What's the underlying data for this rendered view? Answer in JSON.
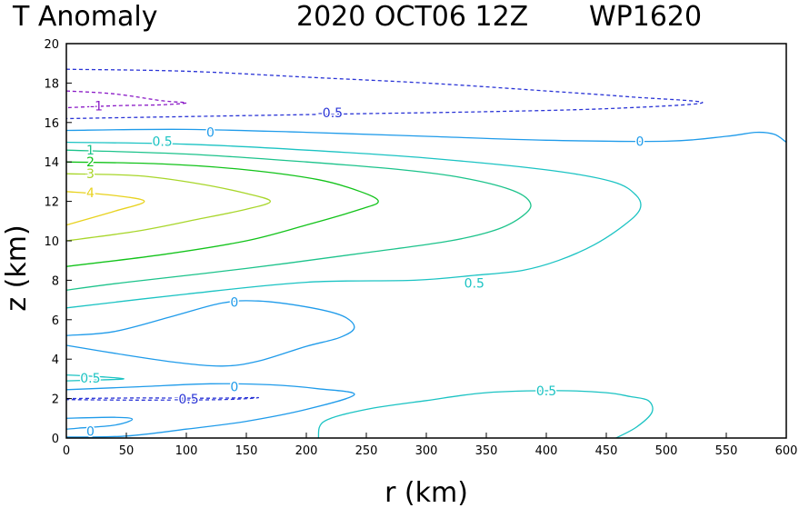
{
  "chart_data": {
    "type": "contour",
    "title": {
      "variable": "T Anomaly",
      "datetime": "2020 OCT06 12Z",
      "storm": "WP1620"
    },
    "xlabel": "r (km)",
    "ylabel": "z (km)",
    "xlim": [
      0,
      600
    ],
    "ylim": [
      0,
      20
    ],
    "x_ticks": [
      0,
      50,
      100,
      150,
      200,
      250,
      300,
      350,
      400,
      450,
      500,
      550,
      600
    ],
    "y_ticks": [
      0,
      2,
      4,
      6,
      8,
      10,
      12,
      14,
      16,
      18,
      20
    ],
    "level_colors": {
      "-1": "#8a19c6",
      "-0.5": "#2a34d6",
      "0": "#1f9bea",
      "0.5": "#1bc3c3",
      "1": "#1cc38b",
      "2": "#12c31a",
      "3": "#a8d62a",
      "4": "#e8d21e"
    },
    "contours": [
      {
        "level": -0.5,
        "dashed": true,
        "points": [
          [
            0,
            18.7
          ],
          [
            100,
            18.6
          ],
          [
            200,
            18.3
          ],
          [
            300,
            18.0
          ],
          [
            400,
            17.6
          ],
          [
            470,
            17.3
          ],
          [
            530,
            17.0
          ],
          [
            450,
            16.7
          ],
          [
            350,
            16.55
          ],
          [
            250,
            16.45
          ],
          [
            150,
            16.35
          ],
          [
            0,
            16.2
          ]
        ]
      },
      {
        "level": -1,
        "dashed": true,
        "points": [
          [
            0,
            17.6
          ],
          [
            40,
            17.45
          ],
          [
            80,
            17.1
          ],
          [
            100,
            17.0
          ],
          [
            80,
            16.9
          ],
          [
            40,
            16.85
          ],
          [
            0,
            16.75
          ]
        ]
      },
      {
        "level": 0,
        "dashed": false,
        "points": [
          [
            0,
            15.6
          ],
          [
            100,
            15.65
          ],
          [
            200,
            15.5
          ],
          [
            300,
            15.3
          ],
          [
            400,
            15.1
          ],
          [
            500,
            15.05
          ],
          [
            550,
            15.3
          ],
          [
            575,
            15.5
          ],
          [
            590,
            15.4
          ],
          [
            600,
            15.0
          ]
        ]
      },
      {
        "level": 0.5,
        "dashed": false,
        "points": [
          [
            0,
            15.0
          ],
          [
            100,
            14.9
          ],
          [
            200,
            14.6
          ],
          [
            300,
            14.2
          ],
          [
            400,
            13.6
          ],
          [
            455,
            13.0
          ],
          [
            475,
            12.3
          ],
          [
            478,
            11.6
          ],
          [
            465,
            10.8
          ],
          [
            440,
            9.8
          ],
          [
            410,
            9.0
          ],
          [
            380,
            8.5
          ],
          [
            340,
            8.25
          ],
          [
            290,
            8.0
          ],
          [
            200,
            7.9
          ],
          [
            100,
            7.3
          ],
          [
            0,
            6.6
          ]
        ]
      },
      {
        "level": 1,
        "dashed": false,
        "points": [
          [
            0,
            14.6
          ],
          [
            100,
            14.4
          ],
          [
            200,
            14.0
          ],
          [
            280,
            13.6
          ],
          [
            330,
            13.2
          ],
          [
            370,
            12.6
          ],
          [
            386,
            12.0
          ],
          [
            383,
            11.4
          ],
          [
            360,
            10.6
          ],
          [
            320,
            10.0
          ],
          [
            250,
            9.4
          ],
          [
            150,
            8.6
          ],
          [
            50,
            7.9
          ],
          [
            0,
            7.5
          ]
        ]
      },
      {
        "level": 2,
        "dashed": false,
        "points": [
          [
            0,
            14.0
          ],
          [
            80,
            13.9
          ],
          [
            150,
            13.6
          ],
          [
            210,
            13.1
          ],
          [
            245,
            12.5
          ],
          [
            260,
            12.0
          ],
          [
            245,
            11.6
          ],
          [
            200,
            10.8
          ],
          [
            150,
            10.0
          ],
          [
            80,
            9.3
          ],
          [
            0,
            8.7
          ]
        ]
      },
      {
        "level": 3,
        "dashed": false,
        "points": [
          [
            0,
            13.4
          ],
          [
            60,
            13.3
          ],
          [
            110,
            12.9
          ],
          [
            150,
            12.4
          ],
          [
            170,
            12.0
          ],
          [
            150,
            11.6
          ],
          [
            110,
            11.1
          ],
          [
            60,
            10.5
          ],
          [
            0,
            10.0
          ]
        ]
      },
      {
        "level": 4,
        "dashed": false,
        "points": [
          [
            0,
            12.5
          ],
          [
            40,
            12.3
          ],
          [
            65,
            12.0
          ],
          [
            40,
            11.5
          ],
          [
            0,
            10.8
          ]
        ]
      },
      {
        "level": 0,
        "dashed": false,
        "points": [
          [
            0,
            5.2
          ],
          [
            40,
            5.4
          ],
          [
            90,
            6.2
          ],
          [
            130,
            6.85
          ],
          [
            160,
            6.95
          ],
          [
            200,
            6.65
          ],
          [
            230,
            6.2
          ],
          [
            240,
            5.6
          ],
          [
            228,
            5.1
          ],
          [
            200,
            4.65
          ],
          [
            160,
            3.9
          ],
          [
            130,
            3.65
          ],
          [
            90,
            3.85
          ],
          [
            40,
            4.3
          ],
          [
            0,
            4.7
          ]
        ]
      },
      {
        "level": 0.5,
        "dashed": false,
        "points": [
          [
            0,
            3.2
          ],
          [
            30,
            3.1
          ],
          [
            48,
            3.0
          ],
          [
            30,
            2.95
          ],
          [
            0,
            2.9
          ]
        ]
      },
      {
        "level": 0,
        "dashed": false,
        "points": [
          [
            0,
            2.45
          ],
          [
            60,
            2.6
          ],
          [
            120,
            2.75
          ],
          [
            170,
            2.7
          ],
          [
            210,
            2.5
          ],
          [
            240,
            2.2
          ],
          [
            200,
            1.45
          ],
          [
            150,
            0.85
          ],
          [
            100,
            0.45
          ],
          [
            50,
            0.1
          ],
          [
            0,
            0.05
          ]
        ]
      },
      {
        "level": -0.5,
        "dashed": true,
        "points": [
          [
            0,
            2.0
          ],
          [
            60,
            2.03
          ],
          [
            120,
            2.02
          ],
          [
            160,
            2.05
          ],
          [
            130,
            1.95
          ],
          [
            60,
            1.92
          ],
          [
            0,
            1.95
          ]
        ]
      },
      {
        "level": 0,
        "dashed": false,
        "points": [
          [
            0,
            1.0
          ],
          [
            40,
            1.05
          ],
          [
            55,
            0.95
          ],
          [
            40,
            0.65
          ],
          [
            10,
            0.5
          ],
          [
            0,
            0.45
          ]
        ]
      },
      {
        "level": 0.5,
        "dashed": false,
        "points": [
          [
            210,
            0
          ],
          [
            215,
            0.85
          ],
          [
            250,
            1.45
          ],
          [
            300,
            1.9
          ],
          [
            350,
            2.3
          ],
          [
            410,
            2.4
          ],
          [
            450,
            2.3
          ],
          [
            470,
            2.1
          ],
          [
            485,
            1.9
          ],
          [
            488,
            1.3
          ],
          [
            475,
            0.55
          ],
          [
            458,
            0
          ]
        ]
      }
    ],
    "contour_labels": [
      {
        "text": "0",
        "level": 0,
        "x": 120,
        "y": 15.5
      },
      {
        "text": "0.5",
        "level": 0.5,
        "x": 80,
        "y": 15.05
      },
      {
        "text": "0",
        "level": 0,
        "x": 478,
        "y": 15.05
      },
      {
        "text": "-0.5",
        "level": -0.5,
        "x": 220,
        "y": 16.5
      },
      {
        "text": "-1",
        "level": -1,
        "x": 25,
        "y": 16.85
      },
      {
        "text": "1",
        "level": 1,
        "x": 20,
        "y": 14.6
      },
      {
        "text": "2",
        "level": 2,
        "x": 20,
        "y": 14.0
      },
      {
        "text": "3",
        "level": 3,
        "x": 20,
        "y": 13.4
      },
      {
        "text": "4",
        "level": 4,
        "x": 20,
        "y": 12.45
      },
      {
        "text": "0.5",
        "level": 0.5,
        "x": 340,
        "y": 7.85
      },
      {
        "text": "0",
        "level": 0,
        "x": 140,
        "y": 6.9
      },
      {
        "text": "0.5",
        "level": 0.5,
        "x": 20,
        "y": 3.05
      },
      {
        "text": "0",
        "level": 0,
        "x": 140,
        "y": 2.6
      },
      {
        "text": "-0.5",
        "level": -0.5,
        "x": 100,
        "y": 1.98
      },
      {
        "text": "0.5",
        "level": 0.5,
        "x": 400,
        "y": 2.4
      },
      {
        "text": "0",
        "level": 0,
        "x": 20,
        "y": 0.35
      }
    ]
  }
}
